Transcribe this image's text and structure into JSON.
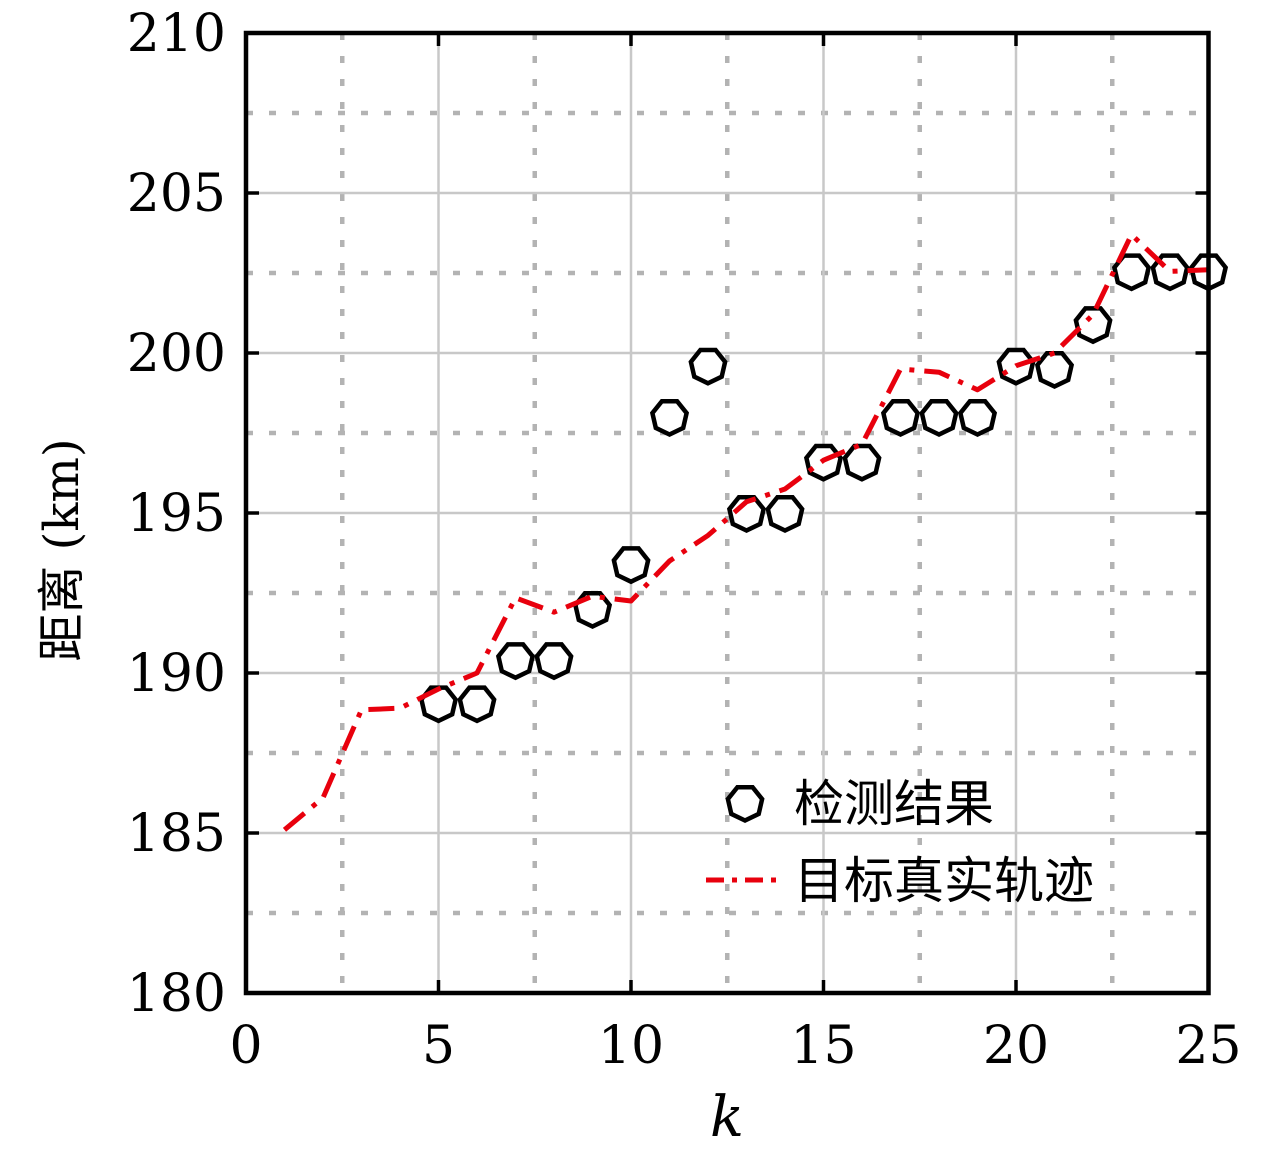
{
  "figure": {
    "background": "#ffffff",
    "frame_color": "#000000"
  },
  "chart_data": {
    "type": "scatter",
    "title": "",
    "xlabel": "k",
    "ylabel": "距离 (km)",
    "xlim": [
      0,
      25
    ],
    "ylim": [
      180,
      210
    ],
    "x_major_ticks": [
      0,
      5,
      10,
      15,
      20,
      25
    ],
    "x_tick_labels": [
      "0",
      "5",
      "10",
      "15",
      "20",
      "25"
    ],
    "y_major_ticks": [
      180,
      185,
      190,
      195,
      200,
      205,
      210
    ],
    "y_tick_labels": [
      "180",
      "185",
      "190",
      "195",
      "200",
      "205",
      "210"
    ],
    "x_minor_gridlines": [
      2.5,
      7.5,
      12.5,
      17.5,
      22.5
    ],
    "y_minor_gridlines": [
      182.5,
      187.5,
      192.5,
      197.5,
      202.5,
      207.5
    ],
    "grid": {
      "major_style": "solid",
      "major_color": "#c8c8c8",
      "minor_style": "dotted",
      "minor_color": "#b3b3b3"
    },
    "legend": {
      "position": "inside-lower-right",
      "border": false
    },
    "series": [
      {
        "name": "检测结果",
        "type": "scatter",
        "marker": "heptagon",
        "marker_color": "#000000",
        "marker_fill": "#ffffff",
        "x": [
          5,
          6,
          7,
          8,
          9,
          10,
          11,
          12,
          13,
          14,
          15,
          16,
          17,
          18,
          19,
          20,
          21,
          22,
          23,
          24,
          25
        ],
        "y": [
          189.05,
          189.05,
          190.4,
          190.4,
          192.0,
          193.4,
          198.0,
          199.6,
          195.0,
          195.0,
          196.6,
          196.6,
          198.0,
          198.0,
          198.0,
          199.6,
          199.5,
          200.9,
          202.55,
          202.55,
          202.55
        ]
      },
      {
        "name": "目标真实轨迹",
        "type": "line",
        "line_style": "dash-dot",
        "color": "#e8000d",
        "x": [
          1,
          2,
          3,
          4,
          5,
          6,
          7,
          8,
          9,
          10,
          11,
          12,
          13,
          14,
          15,
          16,
          17,
          18,
          19,
          20,
          21,
          22,
          23,
          24,
          25
        ],
        "y": [
          185.1,
          186.1,
          188.85,
          188.9,
          189.5,
          190.0,
          192.35,
          191.9,
          192.4,
          192.25,
          193.5,
          194.3,
          195.35,
          195.75,
          196.65,
          197.15,
          199.5,
          199.4,
          198.85,
          199.6,
          200.0,
          201.2,
          203.7,
          202.55,
          202.6
        ]
      }
    ]
  }
}
